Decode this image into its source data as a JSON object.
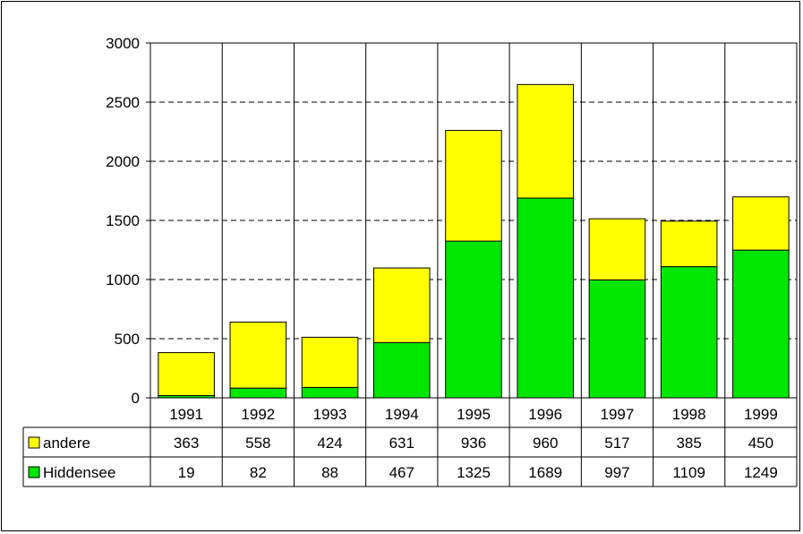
{
  "chart_data": {
    "type": "bar",
    "stacked": true,
    "categories": [
      "1991",
      "1992",
      "1993",
      "1994",
      "1995",
      "1996",
      "1997",
      "1998",
      "1999"
    ],
    "series": [
      {
        "name": "Hiddensee",
        "color": "#00e600",
        "values": [
          19,
          82,
          88,
          467,
          1325,
          1689,
          997,
          1109,
          1249
        ]
      },
      {
        "name": "andere",
        "color": "#ffff00",
        "values": [
          363,
          558,
          424,
          631,
          936,
          960,
          517,
          385,
          450
        ]
      }
    ],
    "table_rows": [
      "andere",
      "Hiddensee"
    ],
    "ylim": [
      0,
      3000
    ],
    "yticks": [
      "0",
      "500",
      "1000",
      "1500",
      "2000",
      "2500",
      "3000"
    ],
    "grid": true,
    "legend": "data-table"
  }
}
